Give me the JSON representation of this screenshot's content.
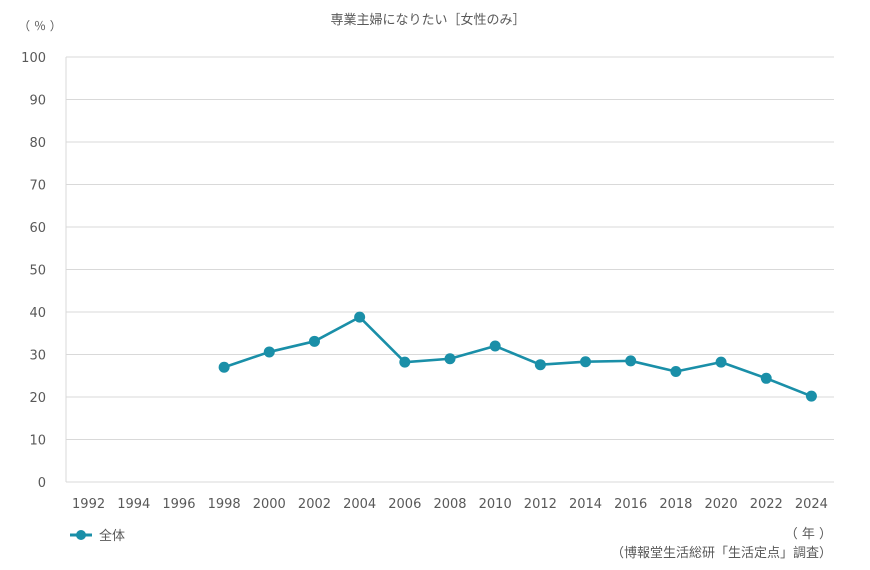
{
  "chart_data": {
    "type": "line",
    "title": "専業主婦になりたい［女性のみ］",
    "y_unit": "（ ％ ）",
    "x_unit": "（ 年 ）",
    "source": "（博報堂生活総研「生活定点」調査）",
    "ylim": [
      0,
      100
    ],
    "y_ticks": [
      "0",
      "10",
      "20",
      "30",
      "40",
      "50",
      "60",
      "70",
      "80",
      "90",
      "100"
    ],
    "categories": [
      "1992",
      "1994",
      "1996",
      "1998",
      "2000",
      "2002",
      "2004",
      "2006",
      "2008",
      "2010",
      "2012",
      "2014",
      "2016",
      "2018",
      "2020",
      "2022",
      "2024"
    ],
    "series": [
      {
        "name": "全体",
        "color": "#1A8FA8",
        "values": [
          null,
          null,
          null,
          27.0,
          30.6,
          33.1,
          38.8,
          28.2,
          29.0,
          32.0,
          27.6,
          28.3,
          28.5,
          26.0,
          28.2,
          24.4,
          20.2
        ]
      }
    ],
    "grid": true,
    "legend_position": "bottom-left",
    "grid_color": "#d9d9d9"
  }
}
